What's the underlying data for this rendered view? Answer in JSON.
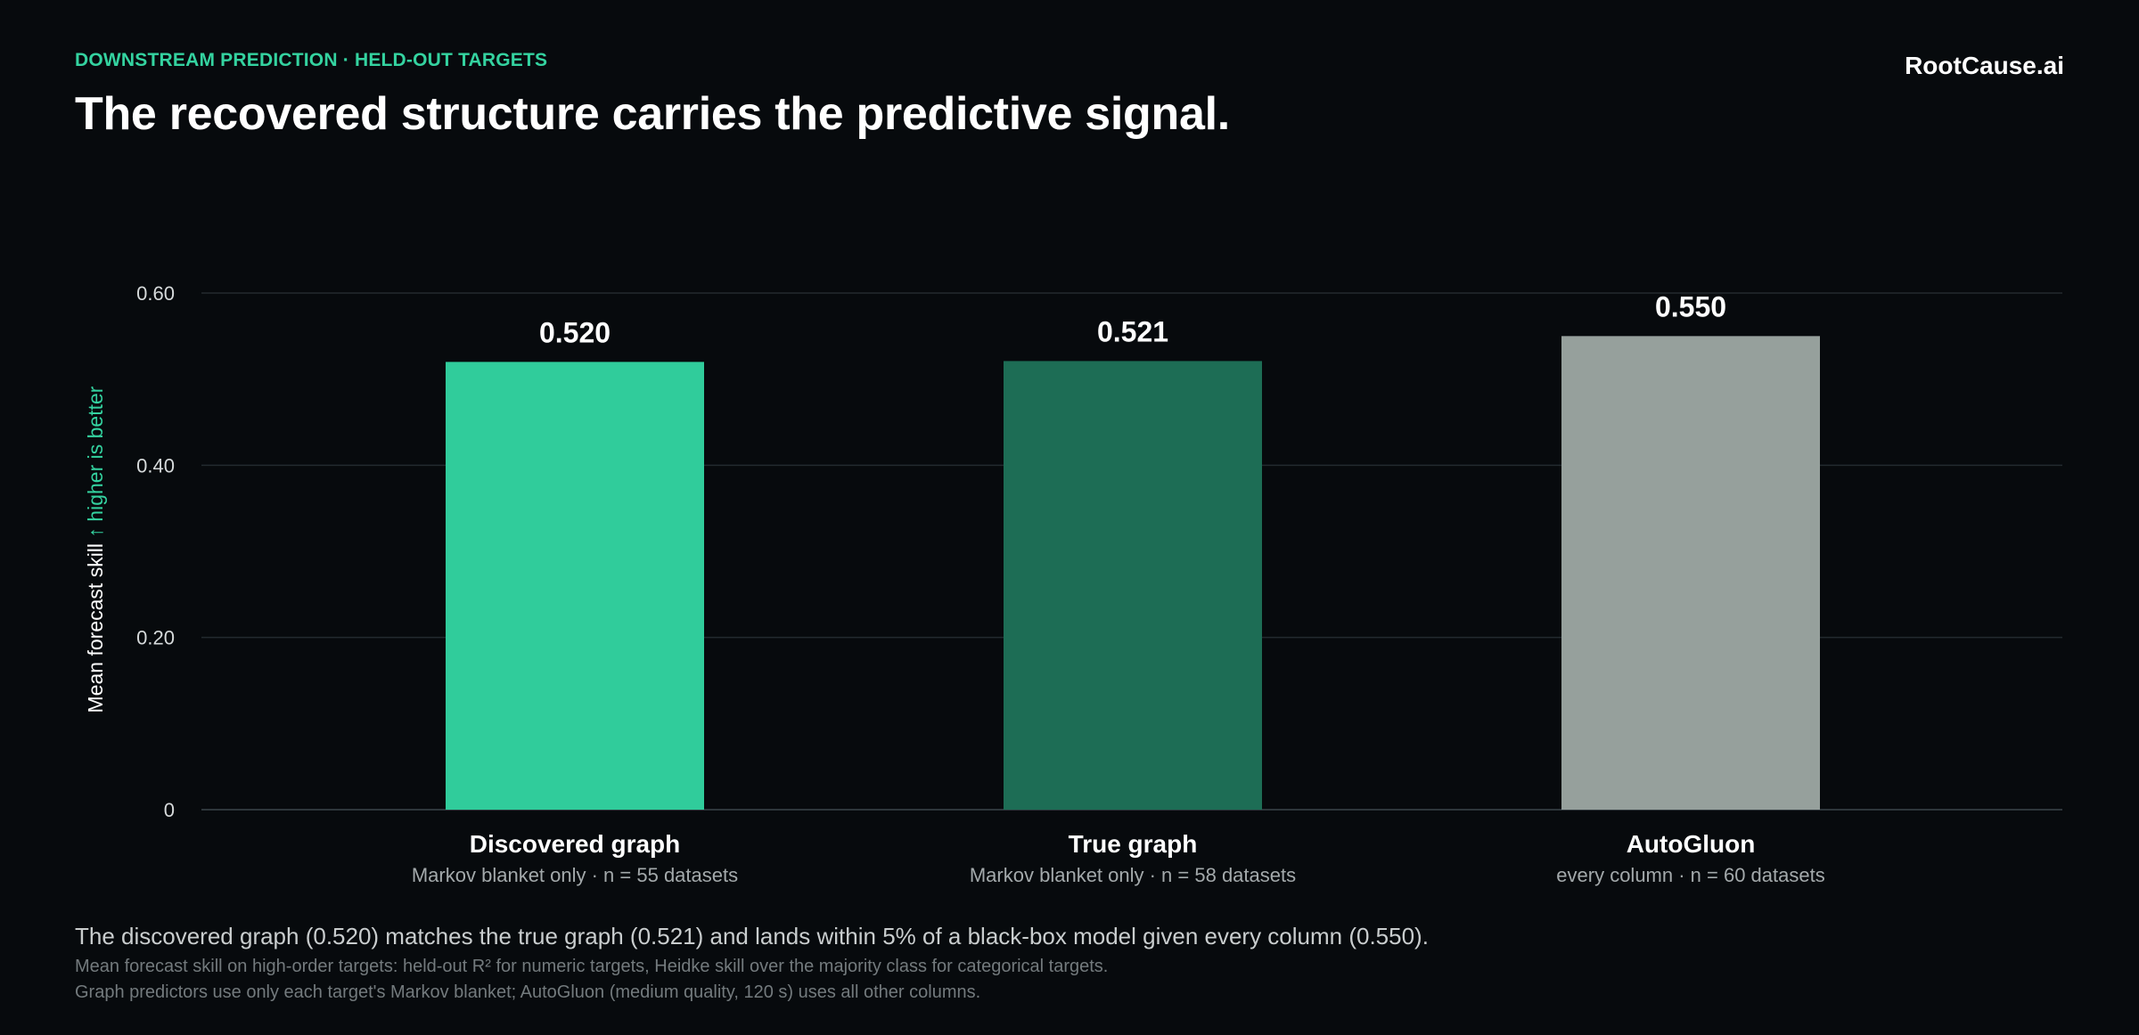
{
  "header": {
    "eyebrow": "DOWNSTREAM PREDICTION · HELD-OUT TARGETS",
    "title": "The recovered structure carries the predictive signal.",
    "brand": "RootCause.ai"
  },
  "chart_data": {
    "type": "bar",
    "categories": [
      "Discovered graph",
      "True graph",
      "AutoGluon"
    ],
    "category_subtitles": [
      "Markov blanket only · n = 55 datasets",
      "Markov blanket only · n = 58 datasets",
      "every column · n = 60 datasets"
    ],
    "values": [
      0.52,
      0.521,
      0.55
    ],
    "value_labels": [
      "0.520",
      "0.521",
      "0.550"
    ],
    "colors": [
      "#30cc9b",
      "#1d6d55",
      "#96a09c"
    ],
    "ylabel": "Mean forecast skill",
    "ylabel_note": "↑ higher is better",
    "ylim": [
      0,
      0.6
    ],
    "yticks": [
      0,
      0.2,
      0.4,
      0.6
    ],
    "ytick_labels": [
      "0",
      "0.20",
      "0.40",
      "0.60"
    ],
    "grid": true,
    "legend": "none"
  },
  "footer": {
    "summary": "The discovered graph (0.520) matches the true graph (0.521) and lands within 5% of a black-box model given every column (0.550).",
    "note_1": "Mean forecast skill on high-order targets: held-out R² for numeric targets, Heidke skill over the majority class for categorical targets.",
    "note_2": "Graph predictors use only each target's Markov blanket; AutoGluon (medium quality, 120 s) uses all other columns."
  }
}
